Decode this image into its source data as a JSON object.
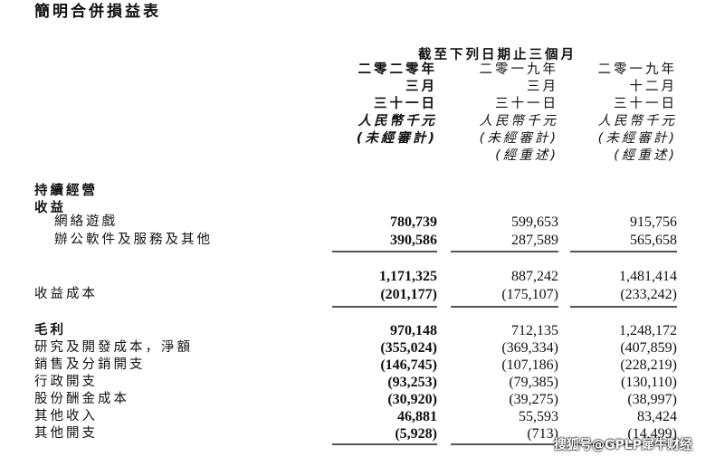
{
  "title": "簡明合併損益表",
  "header": {
    "period": "截至下列日期止三個月",
    "columns": [
      {
        "year": "二零二零年",
        "month": "三月",
        "day": "三十一日",
        "currency": "人民幣千元",
        "audit": "(未經審計)",
        "restated": ""
      },
      {
        "year": "二零一九年",
        "month": "三月",
        "day": "三十一日",
        "currency": "人民幣千元",
        "audit": "(未經審計)",
        "restated": "(經重述)"
      },
      {
        "year": "二零一九年",
        "month": "十二月",
        "day": "三十一日",
        "currency": "人民幣千元",
        "audit": "(未經審計)",
        "restated": "(經重述)"
      }
    ]
  },
  "sections": {
    "continuing": "持續經營",
    "revenue": "收益"
  },
  "rows": [
    {
      "label": "網絡遊戲",
      "values": [
        "780,739",
        "599,653",
        "915,756"
      ]
    },
    {
      "label": "辦公軟件及服務及其他",
      "values": [
        "390,586",
        "287,589",
        "565,658"
      ]
    },
    {
      "label": "",
      "values": [
        "1,171,325",
        "887,242",
        "1,481,414"
      ]
    },
    {
      "label": "收益成本",
      "values": [
        "(201,177)",
        "(175,107)",
        "(233,242)"
      ]
    },
    {
      "label": "毛利",
      "values": [
        "970,148",
        "712,135",
        "1,248,172"
      ]
    },
    {
      "label": "研究及開發成本，淨額",
      "values": [
        "(355,024)",
        "(369,334)",
        "(407,859)"
      ]
    },
    {
      "label": "銷售及分銷開支",
      "values": [
        "(146,745)",
        "(107,186)",
        "(228,219)"
      ]
    },
    {
      "label": "行政開支",
      "values": [
        "(93,253)",
        "(79,385)",
        "(130,110)"
      ]
    },
    {
      "label": "股份酬金成本",
      "values": [
        "(30,920)",
        "(39,275)",
        "(38,997)"
      ]
    },
    {
      "label": "其他收入",
      "values": [
        "46,881",
        "55,593",
        "83,424"
      ]
    },
    {
      "label": "其他開支",
      "values": [
        "(5,928)",
        "(713)",
        "(14,499)"
      ]
    }
  ],
  "watermark": "搜狐号@GPLP犀牛财经"
}
